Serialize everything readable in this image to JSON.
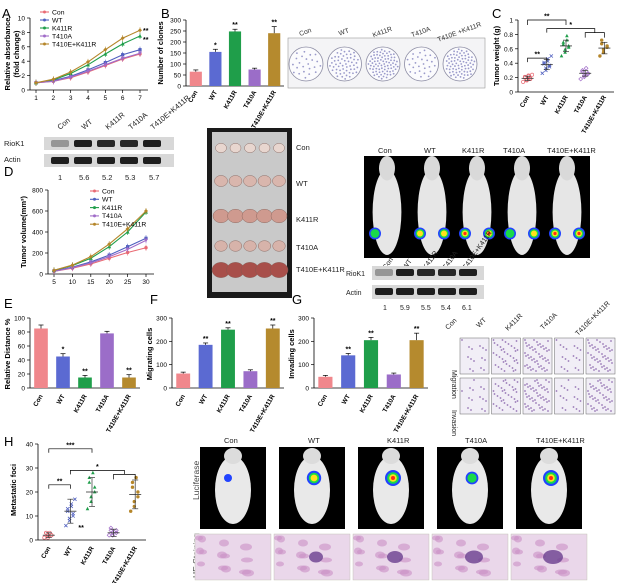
{
  "panel_letters": [
    "A",
    "B",
    "C",
    "D",
    "E",
    "F",
    "G",
    "H"
  ],
  "groups": [
    "Con",
    "WT",
    "K411R",
    "T410A",
    "T410E+K411R"
  ],
  "group_colors": [
    "#e96a73",
    "#4f5fbf",
    "#1f9e4a",
    "#a06cc8",
    "#b5862a"
  ],
  "bar_colors": [
    "#f0878c",
    "#5b6ad2",
    "#1f9e4a",
    "#9b6dc8",
    "#b58a2e"
  ],
  "chart_data": [
    {
      "id": "A",
      "type": "line",
      "ylabel": "Relative absorbance (fold change)",
      "ylabel_lines": [
        "Relative absorbance",
        "(fold change)"
      ],
      "x": [
        1,
        2,
        3,
        4,
        5,
        6,
        7
      ],
      "ylim": [
        0,
        10
      ],
      "yticks": [
        0,
        2,
        4,
        6,
        8,
        10
      ],
      "series": [
        {
          "name": "Con",
          "values": [
            1.0,
            1.2,
            1.7,
            2.5,
            3.4,
            4.3,
            5.0
          ]
        },
        {
          "name": "WT",
          "values": [
            1.0,
            1.3,
            1.9,
            2.8,
            3.8,
            4.9,
            5.6
          ]
        },
        {
          "name": "K411R",
          "values": [
            1.0,
            1.4,
            2.3,
            3.5,
            5.0,
            6.4,
            7.5
          ]
        },
        {
          "name": "T410A",
          "values": [
            1.0,
            1.2,
            1.8,
            2.6,
            3.5,
            4.4,
            5.1
          ]
        },
        {
          "name": "T410E+K411R",
          "values": [
            1.0,
            1.5,
            2.5,
            3.9,
            5.6,
            7.2,
            8.3
          ]
        }
      ],
      "annotations": [
        "**",
        "**"
      ]
    },
    {
      "id": "B",
      "type": "bar",
      "ylabel": "Number of clones",
      "categories": [
        "Con",
        "WT",
        "K411R",
        "T410A",
        "T410E+K411R"
      ],
      "values": [
        65,
        155,
        248,
        75,
        240
      ],
      "errors": [
        8,
        12,
        10,
        6,
        30
      ],
      "stars": [
        "",
        "*",
        "**",
        "",
        "**"
      ],
      "ylim": [
        0,
        300
      ],
      "yticks": [
        0,
        50,
        100,
        150,
        200,
        250,
        300
      ]
    },
    {
      "id": "C",
      "type": "scatter",
      "ylabel": "Tumor weight (g)",
      "categories": [
        "Con",
        "WT",
        "K411R",
        "T410A",
        "T410E+K411R"
      ],
      "means": [
        0.19,
        0.38,
        0.64,
        0.26,
        0.61
      ],
      "sds": [
        0.03,
        0.07,
        0.08,
        0.04,
        0.08
      ],
      "points": [
        [
          0.14,
          0.16,
          0.17,
          0.18,
          0.19,
          0.2,
          0.21,
          0.22,
          0.23,
          0.24
        ],
        [
          0.26,
          0.3,
          0.33,
          0.35,
          0.37,
          0.39,
          0.41,
          0.43,
          0.46,
          0.5
        ],
        [
          0.5,
          0.55,
          0.59,
          0.62,
          0.64,
          0.66,
          0.69,
          0.72,
          0.78
        ],
        [
          0.18,
          0.21,
          0.23,
          0.25,
          0.26,
          0.28,
          0.3,
          0.33
        ],
        [
          0.5,
          0.55,
          0.59,
          0.62,
          0.64,
          0.67,
          0.72
        ]
      ],
      "ylim": [
        0,
        1.0
      ],
      "yticks": [
        0.0,
        0.2,
        0.4,
        0.6,
        0.8,
        1.0
      ],
      "brackets": [
        "**",
        "**",
        "*"
      ]
    },
    {
      "id": "D",
      "type": "line",
      "ylabel": "Tumor volume(mm³)",
      "x": [
        5,
        10,
        15,
        20,
        25,
        30
      ],
      "ylim": [
        0,
        800
      ],
      "yticks": [
        0,
        200,
        400,
        600,
        800
      ],
      "series": [
        {
          "name": "Con",
          "values": [
            25,
            55,
            95,
            150,
            205,
            250
          ]
        },
        {
          "name": "WT",
          "values": [
            30,
            65,
            115,
            180,
            260,
            340
          ]
        },
        {
          "name": "K411R",
          "values": [
            35,
            80,
            150,
            260,
            400,
            590
          ]
        },
        {
          "name": "T410A",
          "values": [
            25,
            60,
            105,
            165,
            235,
            320
          ]
        },
        {
          "name": "T410E+K411R",
          "values": [
            35,
            85,
            165,
            285,
            430,
            600
          ]
        }
      ]
    },
    {
      "id": "E",
      "type": "bar",
      "ylabel": "Relative Distance %",
      "categories": [
        "Con",
        "WT",
        "K411R",
        "T410A",
        "T410E+K411R"
      ],
      "values": [
        85,
        45,
        15,
        78,
        15
      ],
      "errors": [
        5,
        4,
        3,
        3,
        4
      ],
      "stars": [
        "",
        "*",
        "**",
        "",
        "**"
      ],
      "ylim": [
        0,
        100
      ],
      "yticks": [
        0,
        20,
        40,
        60,
        80,
        100
      ]
    },
    {
      "id": "F",
      "type": "bar",
      "ylabel": "Migrating cells",
      "categories": [
        "Con",
        "WT",
        "K411R",
        "T410A",
        "T410E+K411R"
      ],
      "values": [
        62,
        185,
        250,
        72,
        255
      ],
      "errors": [
        6,
        8,
        8,
        6,
        15
      ],
      "stars": [
        "",
        "**",
        "**",
        "",
        "**"
      ],
      "ylim": [
        0,
        300
      ],
      "yticks": [
        0,
        100,
        200,
        300
      ]
    },
    {
      "id": "G",
      "type": "bar",
      "ylabel": "Invading cells",
      "categories": [
        "Con",
        "WT",
        "K411R",
        "T410A",
        "T410E+K411R"
      ],
      "values": [
        48,
        140,
        205,
        58,
        205
      ],
      "errors": [
        6,
        8,
        12,
        6,
        30
      ],
      "stars": [
        "",
        "**",
        "**",
        "",
        "**"
      ],
      "ylim": [
        0,
        300
      ],
      "yticks": [
        0,
        100,
        200,
        300
      ]
    },
    {
      "id": "H",
      "type": "scatter",
      "ylabel": "Metastatic foci",
      "categories": [
        "Con",
        "WT",
        "K411R",
        "T410A",
        "T410E+K411R"
      ],
      "means": [
        2,
        12,
        20,
        3,
        19
      ],
      "sds": [
        1,
        5,
        6,
        1.5,
        6
      ],
      "points": [
        [
          1,
          1,
          2,
          2,
          2,
          3,
          3,
          3
        ],
        [
          6,
          8,
          9,
          10,
          11,
          12,
          13,
          14,
          15,
          17
        ],
        [
          13,
          16,
          18,
          20,
          22,
          24,
          26,
          28
        ],
        [
          2,
          2,
          3,
          3,
          4,
          4,
          5
        ],
        [
          12,
          14,
          16,
          18,
          20,
          22,
          24,
          26
        ]
      ],
      "ylim": [
        0,
        40
      ],
      "yticks": [
        0,
        10,
        20,
        30,
        40
      ],
      "brackets": [
        "**",
        "***",
        "*"
      ],
      "point_stars": [
        "",
        "**",
        "",
        "",
        ""
      ]
    }
  ],
  "blot_A": {
    "label_top": "RioK1",
    "label_bottom": "Actin",
    "lanes": [
      "Con",
      "WT",
      "K411R",
      "T410A",
      "T410E+K411R"
    ],
    "lane_values": [
      "1",
      "5.6",
      "5.2",
      "5.3",
      "5.7"
    ]
  },
  "blot_D": {
    "label_top": "RioK1",
    "label_bottom": "Actin",
    "lanes": [
      "Con",
      "WT",
      "K411R",
      "T410A",
      "T410E+K411R"
    ],
    "lane_values": [
      "1",
      "5.9",
      "5.5",
      "5.4",
      "6.1"
    ]
  },
  "tumor_rows": [
    "Con",
    "WT",
    "K411R",
    "T410A",
    "T410E+K411R"
  ],
  "imaging_labels": [
    "Con",
    "WT",
    "K411R",
    "T410A",
    "T410E+K411R"
  ],
  "invasion_rows": [
    "Migration",
    "Invasion"
  ],
  "h_row_labels": [
    "Luciferase",
    "HE Staining"
  ]
}
